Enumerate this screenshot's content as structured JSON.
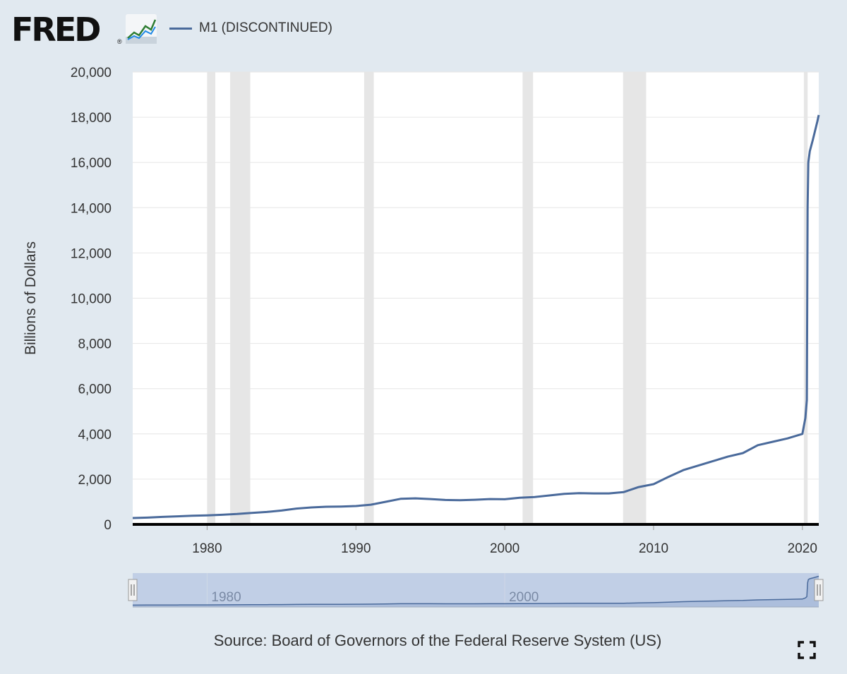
{
  "header": {
    "logo_text": "FRED",
    "logo_mark": "®",
    "logo_icon": "fred-chart-icon",
    "legend_label": "M1 (DISCONTINUED)"
  },
  "colors": {
    "series": "#4a6a9b",
    "recession": "#e6e6e6",
    "background": "#e1e9f0",
    "plot": "#ffffff",
    "grid": "#e6e6e6",
    "navigator_fill": "#c1cfe6",
    "navigator_bg": "#dde5f0"
  },
  "chart_data": {
    "type": "line",
    "xlabel": "",
    "ylabel": "Billions of Dollars",
    "xlim": [
      1975.0,
      2021.1
    ],
    "ylim": [
      0,
      20000
    ],
    "x_ticks": [
      1980,
      1990,
      2000,
      2010,
      2020
    ],
    "y_ticks": [
      0,
      2000,
      4000,
      6000,
      8000,
      10000,
      12000,
      14000,
      16000,
      18000,
      20000
    ],
    "y_tick_labels": [
      "0",
      "2,000",
      "4,000",
      "6,000",
      "8,000",
      "10,000",
      "12,000",
      "14,000",
      "16,000",
      "18,000",
      "20,000"
    ],
    "grid": true,
    "legend": "top-left",
    "recessions": [
      [
        1980.0,
        1980.55
      ],
      [
        1981.55,
        1982.9
      ],
      [
        1990.55,
        1991.2
      ],
      [
        2001.2,
        2001.9
      ],
      [
        2007.95,
        2009.5
      ],
      [
        2020.1,
        2020.35
      ]
    ],
    "series": [
      {
        "name": "M1 (DISCONTINUED)",
        "x": [
          1975.0,
          1976,
          1977,
          1978,
          1979,
          1980,
          1981,
          1982,
          1983,
          1984,
          1985,
          1986,
          1987,
          1988,
          1989,
          1990,
          1991,
          1992,
          1993,
          1994,
          1995,
          1996,
          1997,
          1998,
          1999,
          2000,
          2001,
          2002,
          2003,
          2004,
          2005,
          2006,
          2007,
          2008,
          2009,
          2010,
          2011,
          2012,
          2013,
          2014,
          2015,
          2016,
          2017,
          2018,
          2019,
          2020.0,
          2020.2,
          2020.3,
          2020.35,
          2020.4,
          2020.5,
          2020.7,
          2021.0,
          2021.1
        ],
        "values": [
          280,
          300,
          330,
          355,
          380,
          400,
          425,
          460,
          510,
          550,
          610,
          700,
          750,
          780,
          790,
          810,
          870,
          1000,
          1130,
          1150,
          1120,
          1080,
          1070,
          1090,
          1120,
          1110,
          1180,
          1210,
          1280,
          1350,
          1380,
          1370,
          1370,
          1430,
          1650,
          1780,
          2100,
          2400,
          2600,
          2800,
          3000,
          3150,
          3500,
          3650,
          3800,
          4000,
          4700,
          5500,
          14000,
          16000,
          16500,
          17000,
          17800,
          18100
        ]
      }
    ]
  },
  "navigator": {
    "x_ticks": [
      1980,
      2000
    ],
    "left_handle": "range-handle-left",
    "right_handle": "range-handle-right"
  },
  "footer": {
    "source": "Source: Board of Governors of the Federal Reserve System (US)",
    "fullscreen_icon": "fullscreen-icon"
  }
}
